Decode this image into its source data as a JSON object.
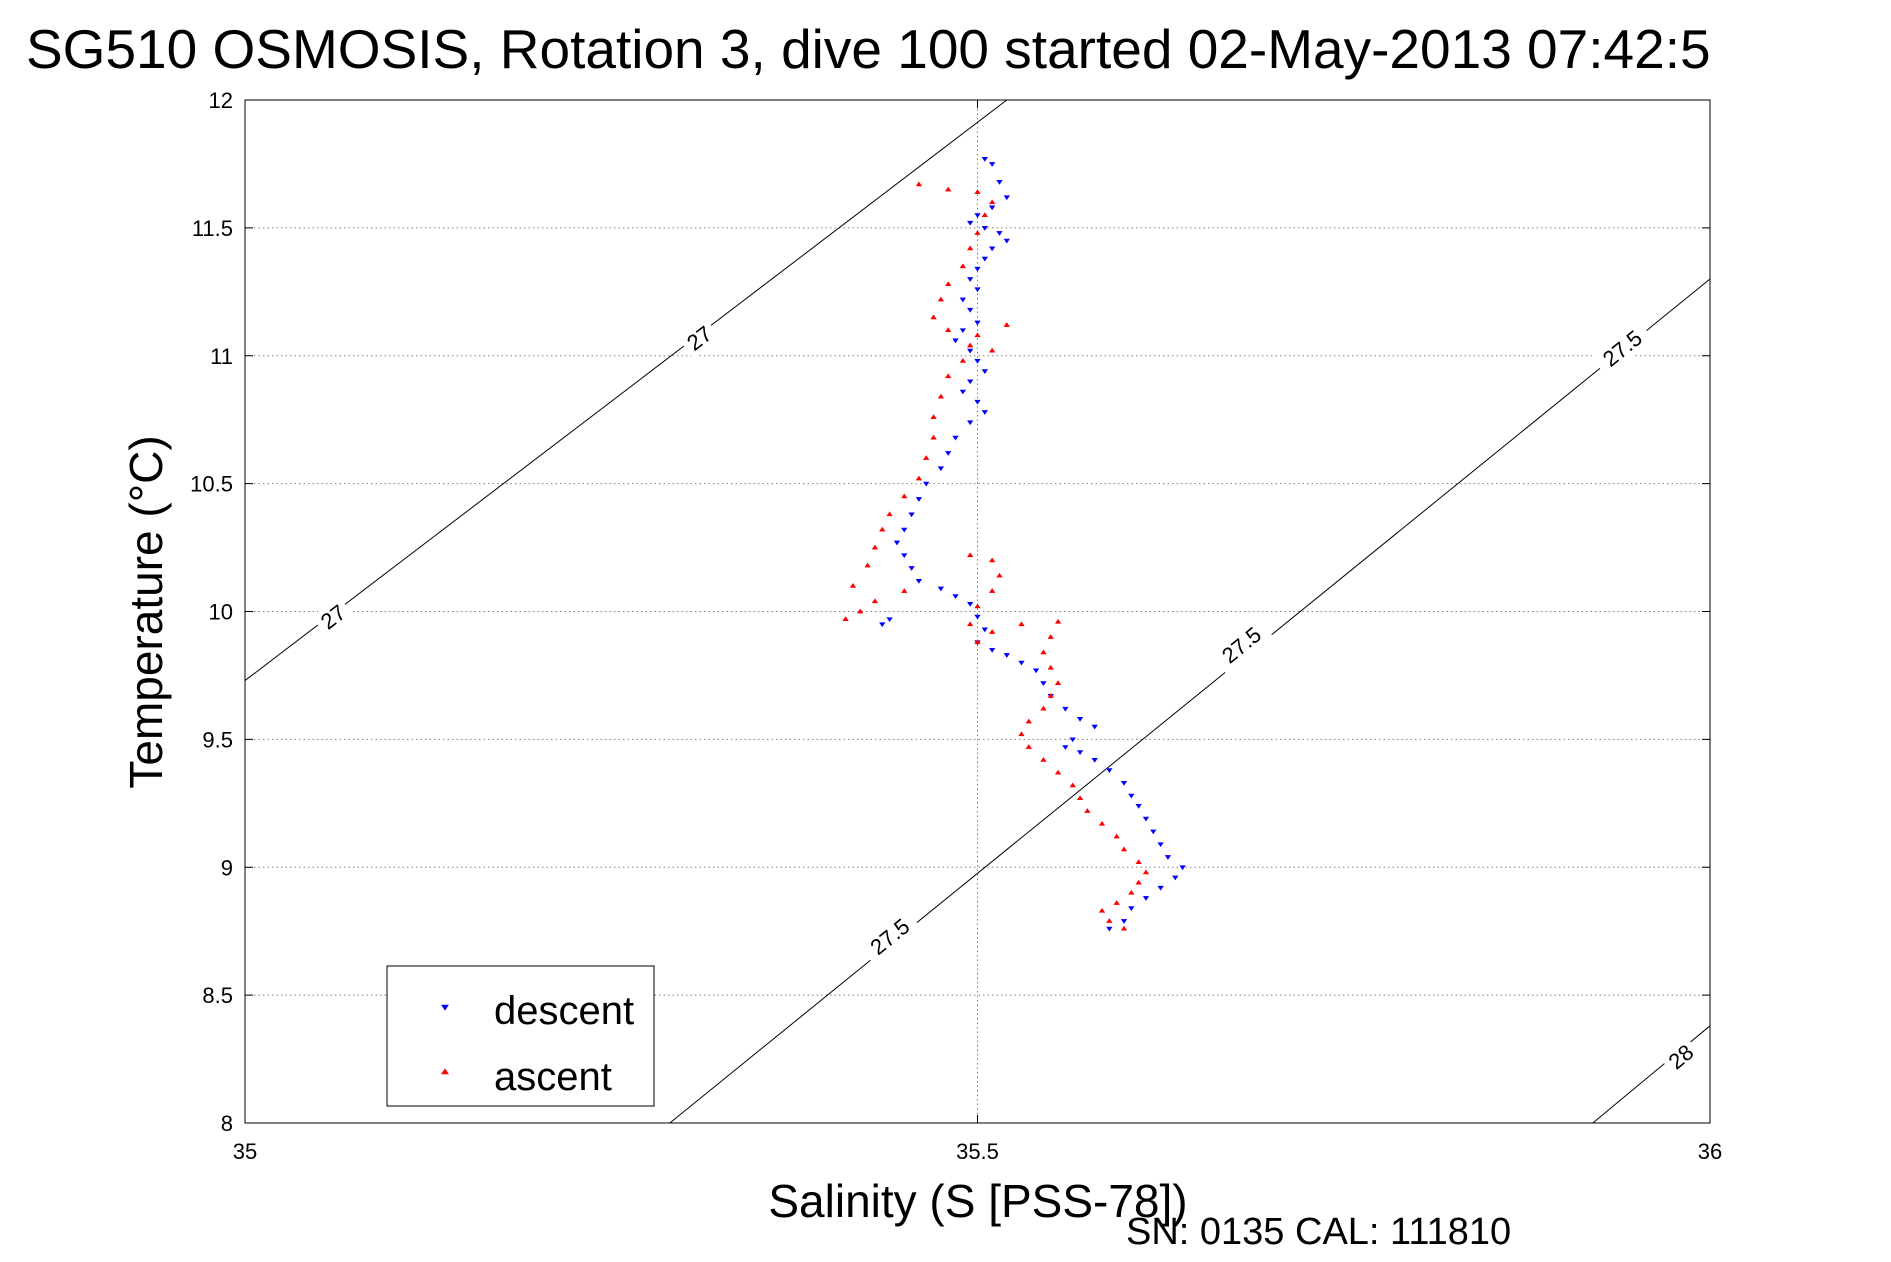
{
  "chart_data": {
    "type": "scatter",
    "title": "SG510 OSMOSIS, Rotation 3, dive 100 started 02-May-2013 07:42:5",
    "xlabel": "Salinity (S [PSS-78])",
    "ylabel": "Temperature (°C)",
    "xlim": [
      35,
      36
    ],
    "ylim": [
      8,
      12
    ],
    "xticks": [
      35,
      35.5,
      36
    ],
    "xtick_labels": [
      "35",
      "35.5",
      "36"
    ],
    "yticks": [
      8,
      8.5,
      9,
      9.5,
      10,
      10.5,
      11,
      11.5,
      12
    ],
    "ytick_labels": [
      "8",
      "8.5",
      "9",
      "9.5",
      "10",
      "10.5",
      "11",
      "11.5",
      "12"
    ],
    "grid": true,
    "legend_position": "bottom-left",
    "footer": "SN: 0135  CAL: 111810",
    "colors": {
      "descent": "#0000ff",
      "ascent": "#ff0000"
    },
    "density_contours": [
      {
        "label": "27",
        "points": [
          [
            35.0,
            9.73
          ],
          [
            35.52,
            12.0
          ]
        ],
        "label_positions": [
          [
            35.06,
            9.98
          ],
          [
            35.31,
            11.07
          ]
        ]
      },
      {
        "label": "27.5",
        "points": [
          [
            35.29,
            8.0
          ],
          [
            36.0,
            11.3
          ]
        ],
        "label_positions": [
          [
            35.44,
            8.73
          ],
          [
            35.68,
            9.87
          ],
          [
            35.94,
            11.03
          ]
        ]
      },
      {
        "label": "28",
        "points": [
          [
            35.92,
            8.0
          ],
          [
            36.0,
            8.38
          ]
        ],
        "label_positions": [
          [
            35.98,
            8.26
          ]
        ]
      }
    ],
    "series": [
      {
        "name": "descent",
        "marker": "triangle-down",
        "points": [
          [
            35.505,
            11.77
          ],
          [
            35.51,
            11.75
          ],
          [
            35.515,
            11.68
          ],
          [
            35.52,
            11.62
          ],
          [
            35.51,
            11.58
          ],
          [
            35.5,
            11.55
          ],
          [
            35.495,
            11.52
          ],
          [
            35.505,
            11.5
          ],
          [
            35.515,
            11.48
          ],
          [
            35.52,
            11.45
          ],
          [
            35.51,
            11.42
          ],
          [
            35.505,
            11.38
          ],
          [
            35.5,
            11.34
          ],
          [
            35.495,
            11.3
          ],
          [
            35.5,
            11.26
          ],
          [
            35.49,
            11.22
          ],
          [
            35.495,
            11.18
          ],
          [
            35.5,
            11.13
          ],
          [
            35.49,
            11.1
          ],
          [
            35.485,
            11.06
          ],
          [
            35.495,
            11.02
          ],
          [
            35.5,
            10.98
          ],
          [
            35.505,
            10.94
          ],
          [
            35.495,
            10.9
          ],
          [
            35.49,
            10.86
          ],
          [
            35.5,
            10.82
          ],
          [
            35.505,
            10.78
          ],
          [
            35.495,
            10.74
          ],
          [
            35.485,
            10.68
          ],
          [
            35.48,
            10.62
          ],
          [
            35.475,
            10.56
          ],
          [
            35.465,
            10.5
          ],
          [
            35.46,
            10.44
          ],
          [
            35.455,
            10.38
          ],
          [
            35.45,
            10.32
          ],
          [
            35.445,
            10.27
          ],
          [
            35.45,
            10.22
          ],
          [
            35.455,
            10.17
          ],
          [
            35.46,
            10.12
          ],
          [
            35.475,
            10.09
          ],
          [
            35.485,
            10.06
          ],
          [
            35.495,
            10.03
          ],
          [
            35.5,
            9.98
          ],
          [
            35.505,
            9.93
          ],
          [
            35.5,
            9.88
          ],
          [
            35.51,
            9.85
          ],
          [
            35.52,
            9.83
          ],
          [
            35.53,
            9.8
          ],
          [
            35.54,
            9.77
          ],
          [
            35.545,
            9.72
          ],
          [
            35.55,
            9.67
          ],
          [
            35.56,
            9.62
          ],
          [
            35.57,
            9.58
          ],
          [
            35.58,
            9.55
          ],
          [
            35.565,
            9.5
          ],
          [
            35.56,
            9.47
          ],
          [
            35.57,
            9.45
          ],
          [
            35.58,
            9.42
          ],
          [
            35.59,
            9.38
          ],
          [
            35.6,
            9.33
          ],
          [
            35.605,
            9.28
          ],
          [
            35.61,
            9.24
          ],
          [
            35.615,
            9.19
          ],
          [
            35.62,
            9.14
          ],
          [
            35.625,
            9.09
          ],
          [
            35.63,
            9.04
          ],
          [
            35.64,
            9.0
          ],
          [
            35.635,
            8.96
          ],
          [
            35.625,
            8.92
          ],
          [
            35.615,
            8.88
          ],
          [
            35.605,
            8.84
          ],
          [
            35.6,
            8.79
          ],
          [
            35.59,
            8.76
          ],
          [
            35.435,
            9.95
          ],
          [
            35.44,
            9.97
          ]
        ]
      },
      {
        "name": "ascent",
        "marker": "triangle-up",
        "points": [
          [
            35.6,
            8.76
          ],
          [
            35.59,
            8.79
          ],
          [
            35.585,
            8.83
          ],
          [
            35.595,
            8.86
          ],
          [
            35.605,
            8.9
          ],
          [
            35.61,
            8.94
          ],
          [
            35.615,
            8.98
          ],
          [
            35.61,
            9.02
          ],
          [
            35.6,
            9.07
          ],
          [
            35.595,
            9.12
          ],
          [
            35.585,
            9.17
          ],
          [
            35.575,
            9.22
          ],
          [
            35.57,
            9.27
          ],
          [
            35.565,
            9.32
          ],
          [
            35.555,
            9.37
          ],
          [
            35.545,
            9.42
          ],
          [
            35.535,
            9.47
          ],
          [
            35.53,
            9.52
          ],
          [
            35.535,
            9.57
          ],
          [
            35.545,
            9.62
          ],
          [
            35.55,
            9.67
          ],
          [
            35.555,
            9.72
          ],
          [
            35.55,
            9.78
          ],
          [
            35.545,
            9.84
          ],
          [
            35.55,
            9.9
          ],
          [
            35.555,
            9.96
          ],
          [
            35.53,
            9.95
          ],
          [
            35.51,
            9.92
          ],
          [
            35.5,
            9.88
          ],
          [
            35.495,
            9.95
          ],
          [
            35.5,
            10.02
          ],
          [
            35.51,
            10.08
          ],
          [
            35.515,
            10.14
          ],
          [
            35.51,
            10.2
          ],
          [
            35.495,
            10.22
          ],
          [
            35.45,
            10.08
          ],
          [
            35.43,
            10.04
          ],
          [
            35.42,
            10.0
          ],
          [
            35.41,
            9.97
          ],
          [
            35.415,
            10.1
          ],
          [
            35.425,
            10.18
          ],
          [
            35.43,
            10.25
          ],
          [
            35.435,
            10.32
          ],
          [
            35.44,
            10.38
          ],
          [
            35.45,
            10.45
          ],
          [
            35.46,
            10.52
          ],
          [
            35.465,
            10.6
          ],
          [
            35.47,
            10.68
          ],
          [
            35.47,
            10.76
          ],
          [
            35.475,
            10.84
          ],
          [
            35.48,
            10.92
          ],
          [
            35.49,
            10.98
          ],
          [
            35.495,
            11.04
          ],
          [
            35.5,
            11.08
          ],
          [
            35.48,
            11.1
          ],
          [
            35.47,
            11.15
          ],
          [
            35.475,
            11.22
          ],
          [
            35.48,
            11.28
          ],
          [
            35.49,
            11.35
          ],
          [
            35.495,
            11.42
          ],
          [
            35.5,
            11.48
          ],
          [
            35.505,
            11.55
          ],
          [
            35.51,
            11.6
          ],
          [
            35.5,
            11.64
          ],
          [
            35.48,
            11.65
          ],
          [
            35.46,
            11.67
          ],
          [
            35.52,
            11.12
          ],
          [
            35.51,
            11.02
          ]
        ]
      }
    ]
  }
}
